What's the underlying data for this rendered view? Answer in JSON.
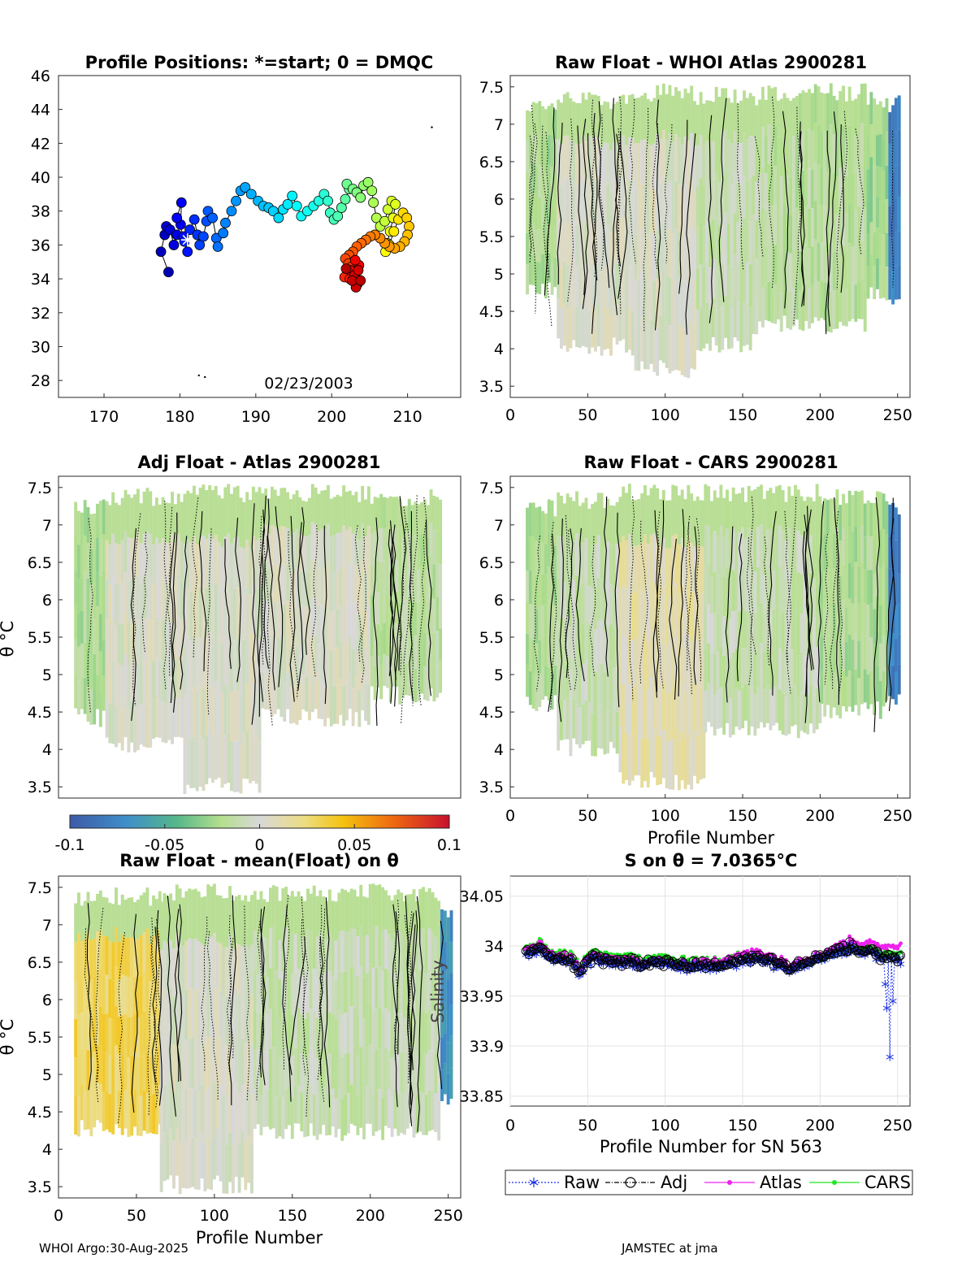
{
  "chart_data": [
    {
      "id": "positions",
      "type": "scatter",
      "title": "Profile Positions: *=start; 0 = DMQC",
      "xticks": [
        "170",
        "180",
        "190",
        "200",
        "210"
      ],
      "yticks": [
        "28",
        "30",
        "32",
        "34",
        "36",
        "38",
        "40",
        "42",
        "44",
        "46"
      ],
      "xlim": [
        164,
        217
      ],
      "ylim": [
        27,
        46
      ],
      "date_label": "02/23/2003",
      "track": [
        [
          178.5,
          34.4
        ],
        [
          177.5,
          35.6
        ],
        [
          178,
          36.6
        ],
        [
          178.2,
          37.1
        ],
        [
          178.7,
          36.9
        ],
        [
          179.2,
          36.0
        ],
        [
          179.6,
          36.6
        ],
        [
          180.1,
          37.2
        ],
        [
          180.2,
          38.5
        ],
        [
          179.6,
          37.6
        ],
        [
          180.5,
          36.5
        ],
        [
          181.0,
          35.6
        ],
        [
          180.6,
          36.2
        ],
        [
          181.3,
          36.9
        ],
        [
          181.9,
          37.5
        ],
        [
          182.3,
          36.6
        ],
        [
          182.6,
          36.0
        ],
        [
          183.1,
          36.5
        ],
        [
          183.5,
          37.4
        ],
        [
          183.7,
          38.0
        ],
        [
          184.3,
          37.6
        ],
        [
          184.8,
          36.4
        ],
        [
          185.0,
          35.9
        ],
        [
          185.7,
          36.7
        ],
        [
          186.0,
          37.3
        ],
        [
          186.8,
          38.0
        ],
        [
          187.4,
          38.6
        ],
        [
          188.0,
          39.2
        ],
        [
          188.6,
          39.4
        ],
        [
          189.4,
          39.0
        ],
        [
          190.3,
          38.6
        ],
        [
          191.0,
          38.3
        ],
        [
          191.7,
          38.2
        ],
        [
          192.3,
          38.0
        ],
        [
          193.0,
          37.6
        ],
        [
          193.6,
          38.1
        ],
        [
          194.2,
          38.4
        ],
        [
          194.8,
          38.9
        ],
        [
          195.4,
          38.3
        ],
        [
          196.0,
          37.7
        ],
        [
          196.8,
          38.0
        ],
        [
          197.6,
          38.3
        ],
        [
          198.3,
          38.6
        ],
        [
          199.0,
          39.0
        ],
        [
          199.5,
          38.6
        ],
        [
          199.8,
          37.9
        ],
        [
          200.3,
          37.5
        ],
        [
          200.8,
          37.7
        ],
        [
          201.3,
          38.2
        ],
        [
          201.8,
          38.7
        ],
        [
          202.3,
          39.3
        ],
        [
          202.0,
          39.6
        ],
        [
          202.8,
          39.3
        ],
        [
          203.3,
          39.1
        ],
        [
          203.8,
          38.8
        ],
        [
          204.2,
          39.5
        ],
        [
          204.8,
          39.7
        ],
        [
          205.3,
          39.2
        ],
        [
          205.5,
          38.5
        ],
        [
          205.9,
          37.6
        ],
        [
          206.4,
          37.1
        ],
        [
          207.0,
          37.4
        ],
        [
          207.4,
          38.1
        ],
        [
          207.9,
          38.6
        ],
        [
          208.4,
          38.4
        ],
        [
          208.1,
          37.6
        ],
        [
          207.7,
          36.8
        ],
        [
          207.3,
          36.1
        ],
        [
          207.1,
          35.6
        ],
        [
          207.6,
          36.0
        ],
        [
          208.2,
          36.8
        ],
        [
          208.8,
          37.5
        ],
        [
          209.4,
          37.9
        ],
        [
          209.9,
          37.6
        ],
        [
          210.2,
          37.1
        ],
        [
          210.0,
          36.6
        ],
        [
          209.6,
          36.2
        ],
        [
          209.0,
          35.9
        ],
        [
          208.3,
          35.8
        ],
        [
          207.6,
          35.9
        ],
        [
          207.0,
          36.1
        ],
        [
          206.4,
          36.4
        ],
        [
          205.7,
          36.6
        ],
        [
          205.1,
          36.5
        ],
        [
          204.5,
          36.3
        ],
        [
          203.9,
          36.1
        ],
        [
          203.3,
          35.9
        ],
        [
          202.8,
          35.6
        ],
        [
          202.3,
          35.4
        ],
        [
          201.8,
          35.2
        ],
        [
          202.2,
          34.9
        ],
        [
          202.6,
          34.7
        ],
        [
          202.1,
          34.4
        ],
        [
          201.7,
          34.1
        ],
        [
          202.4,
          34.0
        ],
        [
          202.9,
          33.9
        ],
        [
          203.4,
          33.7
        ],
        [
          202.9,
          34.4
        ],
        [
          203.6,
          34.8
        ],
        [
          203.1,
          35.1
        ],
        [
          202.5,
          34.5
        ],
        [
          203.0,
          34.2
        ],
        [
          203.5,
          34.5
        ],
        [
          203.2,
          33.5
        ],
        [
          202.7,
          33.9
        ],
        [
          203.8,
          33.9
        ],
        [
          201.9,
          34.6
        ]
      ],
      "start_marker": [
        181.0,
        36.3
      ],
      "stray_points": [
        [
          213.2,
          42.95
        ],
        [
          182.5,
          28.3
        ],
        [
          183.3,
          28.2
        ]
      ]
    },
    {
      "id": "raw-whoi",
      "type": "heatmap",
      "title": "Raw Float - WHOI Atlas  2900281",
      "xticks": [
        "0",
        "50",
        "100",
        "150",
        "200",
        "250"
      ],
      "yticks": [
        "3.5",
        "4",
        "4.5",
        "5",
        "5.5",
        "6",
        "6.5",
        "7",
        "7.5"
      ],
      "xlim": [
        0,
        258
      ],
      "ylim": [
        3.35,
        7.65
      ],
      "regions": [
        {
          "x": [
            10,
            30
          ],
          "top": 7.35,
          "bot": 4.65,
          "value": -0.02
        },
        {
          "x": [
            30,
            80
          ],
          "top": 7.45,
          "bot": 3.9,
          "value": 0.0
        },
        {
          "x": [
            80,
            120
          ],
          "top": 7.55,
          "bot": 3.6,
          "value": 0.0
        },
        {
          "x": [
            120,
            160
          ],
          "top": 7.5,
          "bot": 3.95,
          "value": -0.01
        },
        {
          "x": [
            160,
            230
          ],
          "top": 7.55,
          "bot": 4.2,
          "value": -0.015
        },
        {
          "x": [
            230,
            244
          ],
          "top": 7.45,
          "bot": 4.6,
          "value": -0.025
        },
        {
          "x": [
            244,
            252
          ],
          "top": 7.4,
          "bot": 4.5,
          "value": -0.08
        }
      ]
    },
    {
      "id": "adj-atlas",
      "type": "heatmap",
      "title": "Adj Float - Atlas  2900281",
      "ylabel": "θ °C",
      "yticks": [
        "3.5",
        "4",
        "4.5",
        "5",
        "5.5",
        "6",
        "6.5",
        "7",
        "7.5"
      ],
      "xlim": [
        0,
        258
      ],
      "ylim": [
        3.35,
        7.65
      ],
      "regions": [
        {
          "x": [
            10,
            30
          ],
          "top": 7.35,
          "bot": 4.3,
          "value": -0.02
        },
        {
          "x": [
            30,
            80
          ],
          "top": 7.5,
          "bot": 3.95,
          "value": 0.0
        },
        {
          "x": [
            80,
            130
          ],
          "top": 7.55,
          "bot": 3.4,
          "value": 0.0
        },
        {
          "x": [
            130,
            200
          ],
          "top": 7.55,
          "bot": 4.3,
          "value": 0.0
        },
        {
          "x": [
            200,
            245
          ],
          "top": 7.5,
          "bot": 4.6,
          "value": -0.015
        }
      ]
    },
    {
      "id": "raw-cars",
      "type": "heatmap",
      "title": "Raw Float - CARS  2900281",
      "xlabel": "Profile Number",
      "xticks": [
        "0",
        "50",
        "100",
        "150",
        "200",
        "250"
      ],
      "yticks": [
        "3.5",
        "4",
        "4.5",
        "5",
        "5.5",
        "6",
        "6.5",
        "7",
        "7.5"
      ],
      "xlim": [
        0,
        258
      ],
      "ylim": [
        3.35,
        7.65
      ],
      "regions": [
        {
          "x": [
            10,
            30
          ],
          "top": 7.35,
          "bot": 4.5,
          "value": -0.02
        },
        {
          "x": [
            30,
            70
          ],
          "top": 7.45,
          "bot": 3.9,
          "value": -0.01
        },
        {
          "x": [
            70,
            125
          ],
          "top": 7.55,
          "bot": 3.45,
          "value": 0.01
        },
        {
          "x": [
            125,
            200
          ],
          "top": 7.55,
          "bot": 4.15,
          "value": -0.01
        },
        {
          "x": [
            200,
            244
          ],
          "top": 7.5,
          "bot": 4.4,
          "value": -0.02
        },
        {
          "x": [
            244,
            252
          ],
          "top": 7.35,
          "bot": 4.55,
          "value": -0.08
        }
      ]
    },
    {
      "id": "colorbar",
      "type": "colorbar",
      "ticks": [
        "-0.1",
        "-0.05",
        "0",
        "0.05",
        "0.1"
      ],
      "range": [
        -0.1,
        0.1
      ]
    },
    {
      "id": "raw-mean",
      "type": "heatmap",
      "title": "Raw Float - mean(Float) on θ",
      "xlabel": "Profile Number",
      "ylabel": "θ °C",
      "xticks": [
        "0",
        "50",
        "100",
        "150",
        "200",
        "250"
      ],
      "yticks": [
        "3.5",
        "4",
        "4.5",
        "5",
        "5.5",
        "6",
        "6.5",
        "7",
        "7.5"
      ],
      "xlim": [
        0,
        258
      ],
      "ylim": [
        3.35,
        7.65
      ],
      "regions": [
        {
          "x": [
            10,
            65
          ],
          "top": 7.5,
          "bot": 4.15,
          "value": 0.03
        },
        {
          "x": [
            65,
            125
          ],
          "top": 7.55,
          "bot": 3.4,
          "value": 0.0
        },
        {
          "x": [
            125,
            245
          ],
          "top": 7.55,
          "bot": 4.1,
          "value": -0.01
        },
        {
          "x": [
            245,
            253
          ],
          "top": 7.3,
          "bot": 4.5,
          "value": -0.07
        }
      ]
    },
    {
      "id": "salinity",
      "type": "line",
      "title": "S on θ = 7.0365°C",
      "xlabel": "Profile Number for SN 563",
      "ylabel": "Salinity",
      "xticks": [
        "0",
        "50",
        "100",
        "150",
        "200",
        "250"
      ],
      "yticks": [
        "33.85",
        "33.9",
        "33.95",
        "34",
        "34.05"
      ],
      "xlim": [
        0,
        258
      ],
      "ylim": [
        33.84,
        34.07
      ],
      "anchors": [
        [
          10,
          33.99
        ],
        [
          15,
          33.995
        ],
        [
          20,
          34.0
        ],
        [
          25,
          33.99
        ],
        [
          30,
          33.985
        ],
        [
          35,
          33.99
        ],
        [
          40,
          33.985
        ],
        [
          45,
          33.975
        ],
        [
          50,
          33.985
        ],
        [
          55,
          33.99
        ],
        [
          60,
          33.985
        ],
        [
          70,
          33.985
        ],
        [
          80,
          33.983
        ],
        [
          90,
          33.985
        ],
        [
          100,
          33.984
        ],
        [
          110,
          33.98
        ],
        [
          120,
          33.982
        ],
        [
          130,
          33.98
        ],
        [
          140,
          33.985
        ],
        [
          150,
          33.985
        ],
        [
          160,
          33.99
        ],
        [
          170,
          33.985
        ],
        [
          180,
          33.98
        ],
        [
          190,
          33.985
        ],
        [
          200,
          33.99
        ],
        [
          210,
          33.995
        ],
        [
          220,
          34.0
        ],
        [
          230,
          33.995
        ],
        [
          240,
          33.99
        ],
        [
          252,
          33.99
        ]
      ],
      "raw_dips": [
        [
          242,
          33.962
        ],
        [
          243,
          33.938
        ],
        [
          245,
          33.889
        ],
        [
          247,
          33.945
        ],
        [
          250,
          33.985
        ],
        [
          252,
          33.982
        ]
      ],
      "atlas_offset": [
        [
          0,
          0.005
        ],
        [
          100,
          0.0
        ],
        [
          150,
          0.006
        ],
        [
          200,
          0.002
        ],
        [
          252,
          0.012
        ]
      ],
      "cars_offset": [
        [
          0,
          0.006
        ],
        [
          100,
          0.004
        ],
        [
          150,
          0.005
        ],
        [
          200,
          -0.002
        ],
        [
          252,
          0.005
        ]
      ],
      "legend": [
        "Raw",
        "Adj",
        "Atlas",
        "CARS"
      ],
      "colors": {
        "raw": "#1e32e6",
        "adj": "#000000",
        "atlas": "#ee22ee",
        "cars": "#22e622"
      }
    }
  ],
  "footer": {
    "left": "WHOI Argo:30-Aug-2025",
    "right": "JAMSTEC at jma"
  }
}
